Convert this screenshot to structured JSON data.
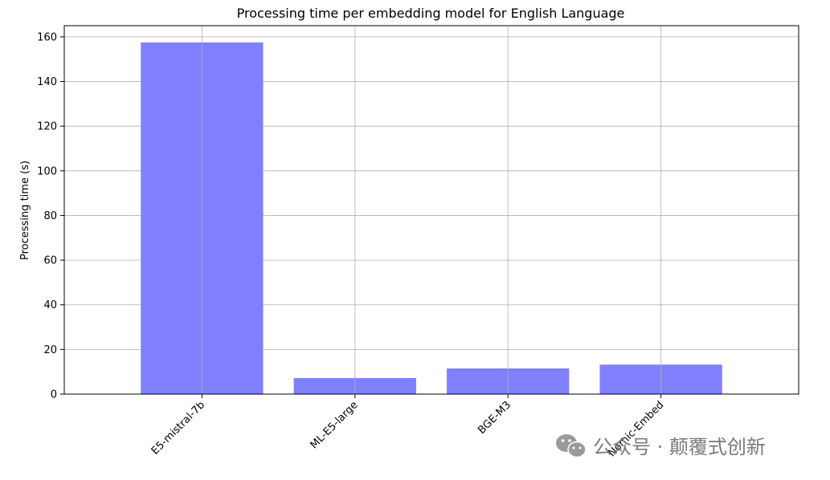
{
  "chart_data": {
    "type": "bar",
    "title": "Processing time per embedding model for English Language",
    "xlabel": "",
    "ylabel": "Processing time (s)",
    "categories": [
      "E5-mistral-7b",
      "ML-E5-large",
      "BGE-M3",
      "Nomic-Embed"
    ],
    "values": [
      157.5,
      7.2,
      11.5,
      13.2
    ],
    "yticks": [
      0,
      20,
      40,
      60,
      80,
      100,
      120,
      140,
      160
    ],
    "ylim": [
      0,
      165
    ],
    "grid": true,
    "bar_color": "#8080ff"
  },
  "watermark": {
    "text": "公众号 · 颠覆式创新",
    "icon": "wechat-icon"
  }
}
